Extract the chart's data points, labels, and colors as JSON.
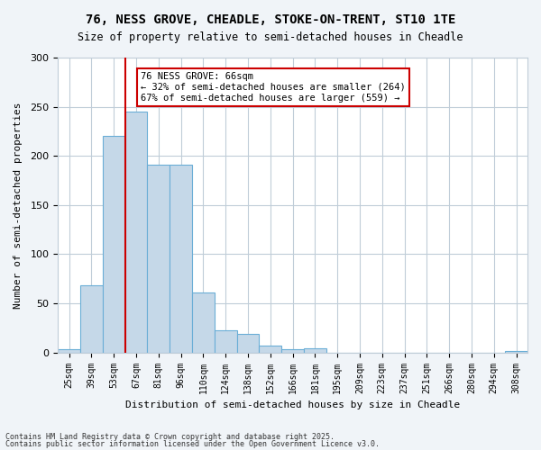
{
  "title1": "76, NESS GROVE, CHEADLE, STOKE-ON-TRENT, ST10 1TE",
  "title2": "Size of property relative to semi-detached houses in Cheadle",
  "xlabel": "Distribution of semi-detached houses by size in Cheadle",
  "ylabel": "Number of semi-detached properties",
  "categories": [
    "25sqm",
    "39sqm",
    "53sqm",
    "67sqm",
    "81sqm",
    "96sqm",
    "110sqm",
    "124sqm",
    "138sqm",
    "152sqm",
    "166sqm",
    "181sqm",
    "195sqm",
    "209sqm",
    "223sqm",
    "237sqm",
    "251sqm",
    "266sqm",
    "280sqm",
    "294sqm",
    "308sqm"
  ],
  "values": [
    3,
    68,
    220,
    245,
    191,
    191,
    61,
    23,
    19,
    7,
    3,
    4,
    0,
    0,
    0,
    0,
    0,
    0,
    0,
    0,
    2
  ],
  "bar_color": "#c5d8e8",
  "bar_edgecolor": "#6aaed6",
  "vline_x": 2,
  "vline_color": "#cc0000",
  "annotation_text": "76 NESS GROVE: 66sqm\n← 32% of semi-detached houses are smaller (264)\n67% of semi-detached houses are larger (559) →",
  "annotation_box_color": "#ffffff",
  "annotation_box_edgecolor": "#cc0000",
  "ylim": [
    0,
    300
  ],
  "yticks": [
    0,
    50,
    100,
    150,
    200,
    250,
    300
  ],
  "footer1": "Contains HM Land Registry data © Crown copyright and database right 2025.",
  "footer2": "Contains public sector information licensed under the Open Government Licence v3.0.",
  "bg_color": "#f0f4f8",
  "plot_bg_color": "#ffffff",
  "grid_color": "#c0cdd8"
}
